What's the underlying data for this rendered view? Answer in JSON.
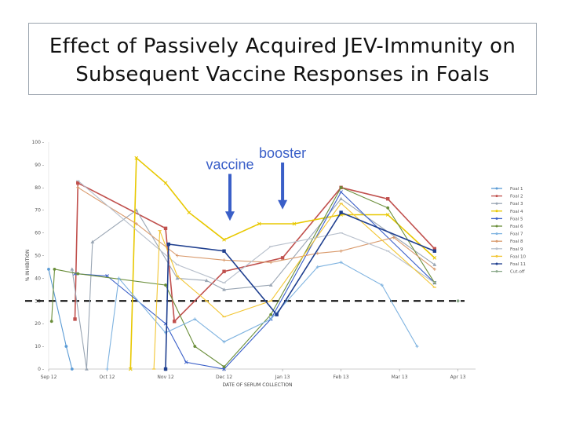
{
  "slide": {
    "title_line1": "Effect of Passively Acquired JEV-Immunity on",
    "title_line2": "Subsequent Vaccine Responses in Foals"
  },
  "chart_data": {
    "type": "line",
    "title": "",
    "xlabel": "DATE OF SERUM COLLECTION",
    "ylabel": "% INHIBITION",
    "ylim": [
      0,
      100
    ],
    "yticks": [
      0,
      10,
      20,
      30,
      40,
      50,
      60,
      70,
      80,
      90,
      100
    ],
    "xlim": [
      0,
      7.3
    ],
    "xticks": [
      {
        "x": 0,
        "label": "Sep 12"
      },
      {
        "x": 1,
        "label": "Oct 12"
      },
      {
        "x": 2,
        "label": "Nov 12"
      },
      {
        "x": 3,
        "label": "Dec 12"
      },
      {
        "x": 4,
        "label": "Jan 13"
      },
      {
        "x": 5,
        "label": "Feb 13"
      },
      {
        "x": 6,
        "label": "Mar 13"
      },
      {
        "x": 7,
        "label": "Apr 13"
      }
    ],
    "threshold": {
      "y": 30,
      "style": "dashed",
      "color": "#000000"
    },
    "annotations": [
      {
        "text": "vaccine",
        "x": 3.1,
        "arrow_from": 86,
        "arrow_to": 66
      },
      {
        "text": "booster",
        "x": 4.0,
        "arrow_from": 91,
        "arrow_to": 71
      }
    ],
    "legend_position": "right",
    "series": [
      {
        "name": "Foal 1",
        "color": "#5b9bd5",
        "points": [
          [
            0.0,
            44
          ],
          [
            0.3,
            10
          ],
          [
            0.4,
            0
          ]
        ]
      },
      {
        "name": "Foal 2",
        "color": "#c0504d",
        "points": [
          [
            0.45,
            22
          ],
          [
            0.5,
            82
          ],
          [
            2.0,
            62
          ],
          [
            2.15,
            21
          ],
          [
            3.0,
            43
          ],
          [
            4.0,
            49
          ],
          [
            5.0,
            80
          ],
          [
            5.8,
            75
          ],
          [
            6.6,
            53
          ]
        ]
      },
      {
        "name": "Foal 3",
        "color": "#9aa6b4",
        "points": [
          [
            0.4,
            44
          ],
          [
            0.65,
            0
          ],
          [
            0.75,
            56
          ],
          [
            1.5,
            70
          ],
          [
            2.2,
            40
          ],
          [
            2.7,
            39
          ],
          [
            3.0,
            35
          ],
          [
            3.8,
            37
          ],
          [
            5.0,
            75
          ],
          [
            6.6,
            46
          ]
        ]
      },
      {
        "name": "Foal 4",
        "color": "#e8c800",
        "points": [
          [
            1.4,
            0
          ],
          [
            1.5,
            93
          ],
          [
            2.0,
            82
          ],
          [
            2.4,
            69
          ],
          [
            3.0,
            57
          ],
          [
            3.6,
            64
          ],
          [
            4.2,
            64
          ],
          [
            5.0,
            68
          ],
          [
            5.8,
            68
          ],
          [
            6.6,
            49
          ]
        ]
      },
      {
        "name": "Foal 5",
        "color": "#3a5fc8",
        "points": [
          [
            0.45,
            42
          ],
          [
            1.0,
            41
          ],
          [
            2.0,
            20
          ],
          [
            2.35,
            3
          ],
          [
            3.0,
            0
          ],
          [
            3.8,
            22
          ],
          [
            5.0,
            78
          ],
          [
            6.6,
            38
          ]
        ]
      },
      {
        "name": "Foal 6",
        "color": "#6a8e3a",
        "points": [
          [
            0.05,
            21
          ],
          [
            0.1,
            44
          ],
          [
            0.5,
            42
          ],
          [
            2.0,
            37
          ],
          [
            2.5,
            10
          ],
          [
            3.0,
            1
          ],
          [
            3.8,
            24
          ],
          [
            5.0,
            80
          ],
          [
            5.8,
            71
          ],
          [
            6.6,
            38
          ]
        ]
      },
      {
        "name": "Foal 7",
        "color": "#7fb3e0",
        "points": [
          [
            1.0,
            0
          ],
          [
            1.2,
            40
          ],
          [
            2.0,
            16
          ],
          [
            2.5,
            22
          ],
          [
            3.0,
            12
          ],
          [
            3.8,
            22
          ],
          [
            4.6,
            45
          ],
          [
            5.0,
            47
          ],
          [
            5.7,
            37
          ],
          [
            6.3,
            10
          ]
        ]
      },
      {
        "name": "Foal 8",
        "color": "#d99a6c",
        "points": [
          [
            0.5,
            80
          ],
          [
            1.5,
            64
          ],
          [
            2.2,
            50
          ],
          [
            3.0,
            48
          ],
          [
            3.8,
            47
          ],
          [
            4.6,
            51
          ],
          [
            5.0,
            52
          ],
          [
            5.9,
            58
          ],
          [
            6.6,
            44
          ]
        ]
      },
      {
        "name": "Foal 9",
        "color": "#b8c0cc",
        "points": [
          [
            0.5,
            83
          ],
          [
            2.2,
            46
          ],
          [
            3.0,
            38
          ],
          [
            3.8,
            54
          ],
          [
            5.0,
            60
          ],
          [
            5.8,
            52
          ],
          [
            6.6,
            38
          ]
        ]
      },
      {
        "name": "Foal 10",
        "color": "#f2c634",
        "points": [
          [
            1.8,
            0
          ],
          [
            1.9,
            61
          ],
          [
            2.2,
            41
          ],
          [
            2.7,
            30
          ],
          [
            3.0,
            23
          ],
          [
            3.8,
            30
          ],
          [
            5.0,
            73
          ],
          [
            6.6,
            36
          ]
        ]
      },
      {
        "name": "Foal 11",
        "color": "#1f3f8f",
        "points": [
          [
            2.0,
            0
          ],
          [
            2.05,
            55
          ],
          [
            3.0,
            52
          ],
          [
            3.9,
            24
          ],
          [
            5.0,
            69
          ],
          [
            6.6,
            52
          ]
        ]
      },
      {
        "name": "Cut-off",
        "color": "#8aa88a",
        "points": [
          [
            7.0,
            30
          ]
        ]
      }
    ]
  }
}
